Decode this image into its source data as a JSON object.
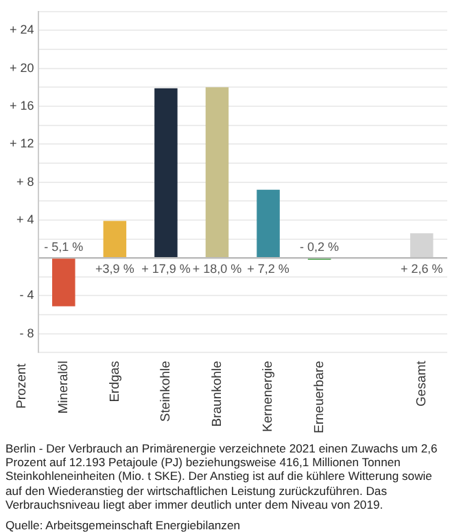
{
  "chart_data": {
    "type": "bar",
    "ylabel": "Prozent",
    "categories": [
      "Mineralöl",
      "Erdgas",
      "Steinkohle",
      "Braunkohle",
      "Kernenergie",
      "Erneuerbare",
      null,
      "Gesamt"
    ],
    "values": [
      -5.1,
      3.9,
      17.9,
      18.0,
      7.2,
      -0.2,
      null,
      2.6
    ],
    "colors": [
      "#d9553a",
      "#e8b33f",
      "#1f2d40",
      "#c8c08a",
      "#3a8d9e",
      "#5aa85a",
      "#ffffff",
      "#d4d4d4"
    ],
    "value_labels": [
      "- 5,1 %",
      "+3,9 %",
      "+ 17,9 %",
      "+ 18,0 %",
      "+ 7,2 %",
      "- 0,2 %",
      null,
      "+ 2,6 %"
    ],
    "ylim": [
      -10,
      26
    ],
    "yticks": [
      {
        "value": -10,
        "label": null
      },
      {
        "value": -8,
        "label": "- 8"
      },
      {
        "value": -6,
        "label": null
      },
      {
        "value": -4,
        "label": "- 4"
      },
      {
        "value": -2,
        "label": null
      },
      {
        "value": 0,
        "label": null
      },
      {
        "value": 2,
        "label": null
      },
      {
        "value": 4,
        "label": "+ 4"
      },
      {
        "value": 6,
        "label": null
      },
      {
        "value": 8,
        "label": "+ 8"
      },
      {
        "value": 10,
        "label": null
      },
      {
        "value": 12,
        "label": "+ 12"
      },
      {
        "value": 14,
        "label": null
      },
      {
        "value": 16,
        "label": "+ 16"
      },
      {
        "value": 18,
        "label": null
      },
      {
        "value": 20,
        "label": "+ 20"
      },
      {
        "value": 22,
        "label": null
      },
      {
        "value": 24,
        "label": "+ 24"
      },
      {
        "value": 26,
        "label": null
      }
    ],
    "grid": "y",
    "legend": false,
    "annotations": [
      "Berlin - Der Verbrauch an Primärenergie verzeichnete 2021 einen Zuwachs um 2,6 Prozent auf 12.193 Petajoule (PJ) beziehungsweise 416,1 Millionen Tonnen Steinkohleneinheiten (Mio. t SKE). Der Anstieg ist auf die kühlere Witterung sowie auf den Wiederanstieg der wirtschaftlichen Leistung zurückzuführen. Das Verbrauchsniveau liegt aber immer deutlich unter dem Niveau von 2019.",
      "Quelle: Arbeitsgemeinschaft Energiebilanzen"
    ]
  }
}
